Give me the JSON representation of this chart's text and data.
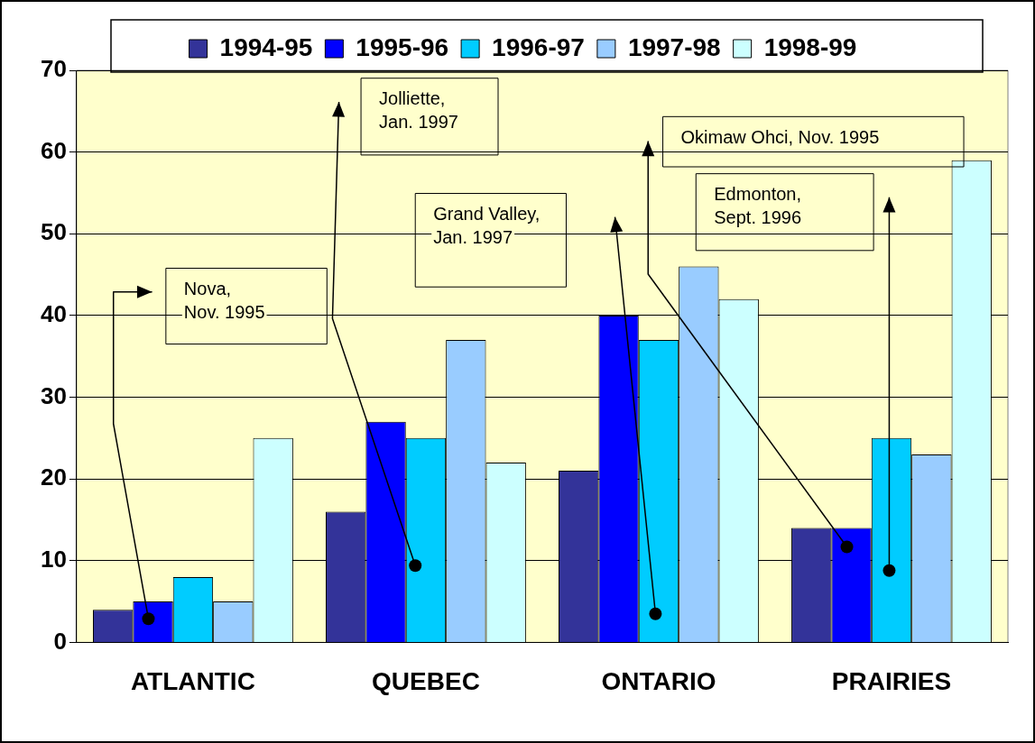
{
  "chart_data": {
    "type": "bar",
    "categories": [
      "ATLANTIC",
      "QUEBEC",
      "ONTARIO",
      "PRAIRIES"
    ],
    "series": [
      {
        "name": "1994-95",
        "color": "#333399",
        "values": [
          4,
          16,
          21,
          14
        ]
      },
      {
        "name": "1995-96",
        "color": "#0000ff",
        "values": [
          5,
          27,
          40,
          14
        ]
      },
      {
        "name": "1996-97",
        "color": "#00ccff",
        "values": [
          8,
          25,
          37,
          25
        ]
      },
      {
        "name": "1997-98",
        "color": "#99ccff",
        "values": [
          5,
          37,
          46,
          23
        ]
      },
      {
        "name": "1998-99",
        "color": "#ccffff",
        "values": [
          25,
          22,
          42,
          59
        ]
      }
    ],
    "ylim": [
      0,
      70
    ],
    "yticks": [
      0,
      10,
      20,
      30,
      40,
      50,
      60,
      70
    ],
    "grid": "y",
    "legend": "top",
    "annotations": [
      "Nova,\nNov. 1995",
      "Jolliette,\nJan. 1997",
      "Grand Valley,\nJan. 1997",
      "Okimaw Ohci, Nov. 1995",
      "Edmonton,\nSept. 1996"
    ]
  }
}
